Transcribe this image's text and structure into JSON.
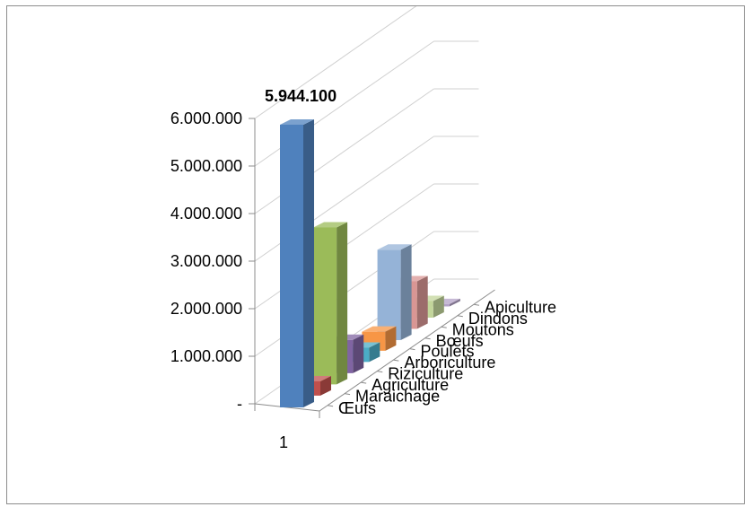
{
  "chart_data": {
    "type": "bar",
    "title": "",
    "xlabel": "",
    "ylabel": "",
    "categories": [
      "1"
    ],
    "ylim": [
      0,
      6000000
    ],
    "y_ticks": [
      "-",
      "1.000.000",
      "2.000.000",
      "3.000.000",
      "4.000.000",
      "5.000.000",
      "6.000.000"
    ],
    "grid": true,
    "projection": "3d-column",
    "series": [
      {
        "name": "Œufs",
        "values": [
          5944100
        ],
        "color": "#4F81BD",
        "data_label": "5.944.100"
      },
      {
        "name": "Maraichage",
        "values": [
          300000
        ],
        "color": "#C0504D"
      },
      {
        "name": "Agriculture",
        "values": [
          3300000
        ],
        "color": "#9BBB59"
      },
      {
        "name": "Riziculture",
        "values": [
          700000
        ],
        "color": "#8064A2"
      },
      {
        "name": "Arboriculture",
        "values": [
          300000
        ],
        "color": "#4BACC6"
      },
      {
        "name": "Poulets",
        "values": [
          400000
        ],
        "color": "#F79646"
      },
      {
        "name": "Bœufs",
        "values": [
          1900000
        ],
        "color": "#95B3D7"
      },
      {
        "name": "Moutons",
        "values": [
          1000000
        ],
        "color": "#D99694"
      },
      {
        "name": "Dindons",
        "values": [
          350000
        ],
        "color": "#C3D69B"
      },
      {
        "name": "Apiculture",
        "values": [
          50000
        ],
        "color": "#B3A2C7"
      }
    ]
  }
}
